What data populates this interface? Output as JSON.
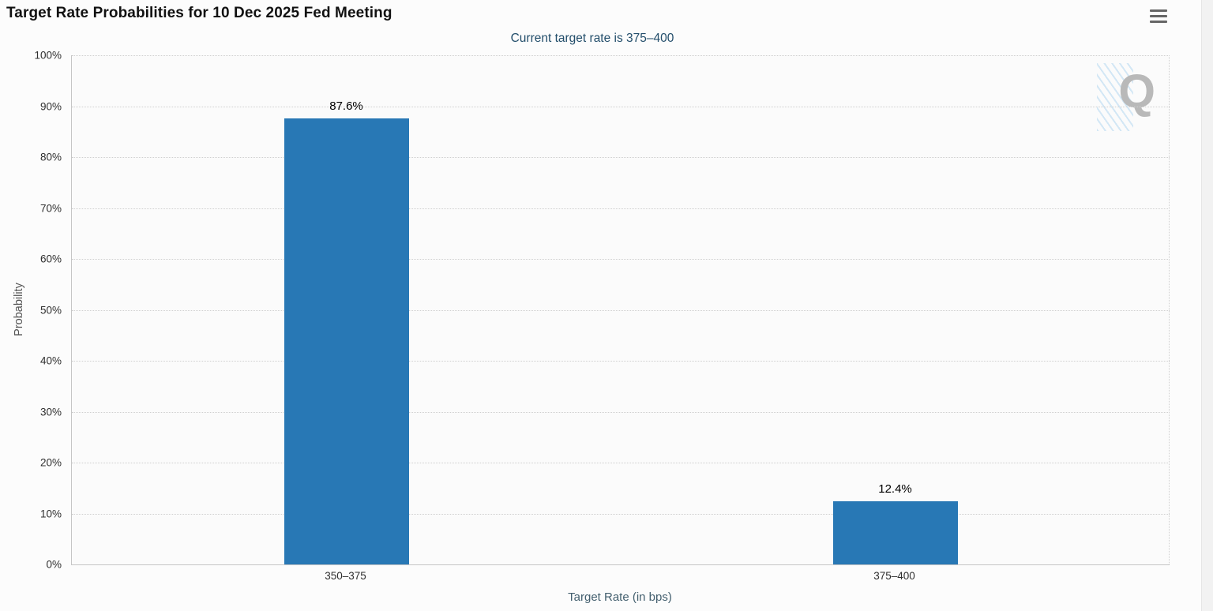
{
  "chart_data": {
    "type": "bar",
    "title": "Target Rate Probabilities for 10 Dec 2025 Fed Meeting",
    "subtitle": "Current target rate is 375–400",
    "categories": [
      "350–375",
      "375–400"
    ],
    "values": [
      87.6,
      12.4
    ],
    "value_labels": [
      "87.6%",
      "12.4%"
    ],
    "xlabel": "Target Rate (in bps)",
    "ylabel": "Probability",
    "ylim": [
      0,
      100
    ],
    "yticks": [
      0,
      10,
      20,
      30,
      40,
      50,
      60,
      70,
      80,
      90,
      100
    ],
    "ytick_suffix": "%",
    "grid": "dotted",
    "legend": "none",
    "bar_color": "#2878b5",
    "subtitle_color": "#234e6b",
    "watermark_letter": "Q"
  },
  "toolbar": {
    "menu_icon": "hamburger-icon"
  }
}
